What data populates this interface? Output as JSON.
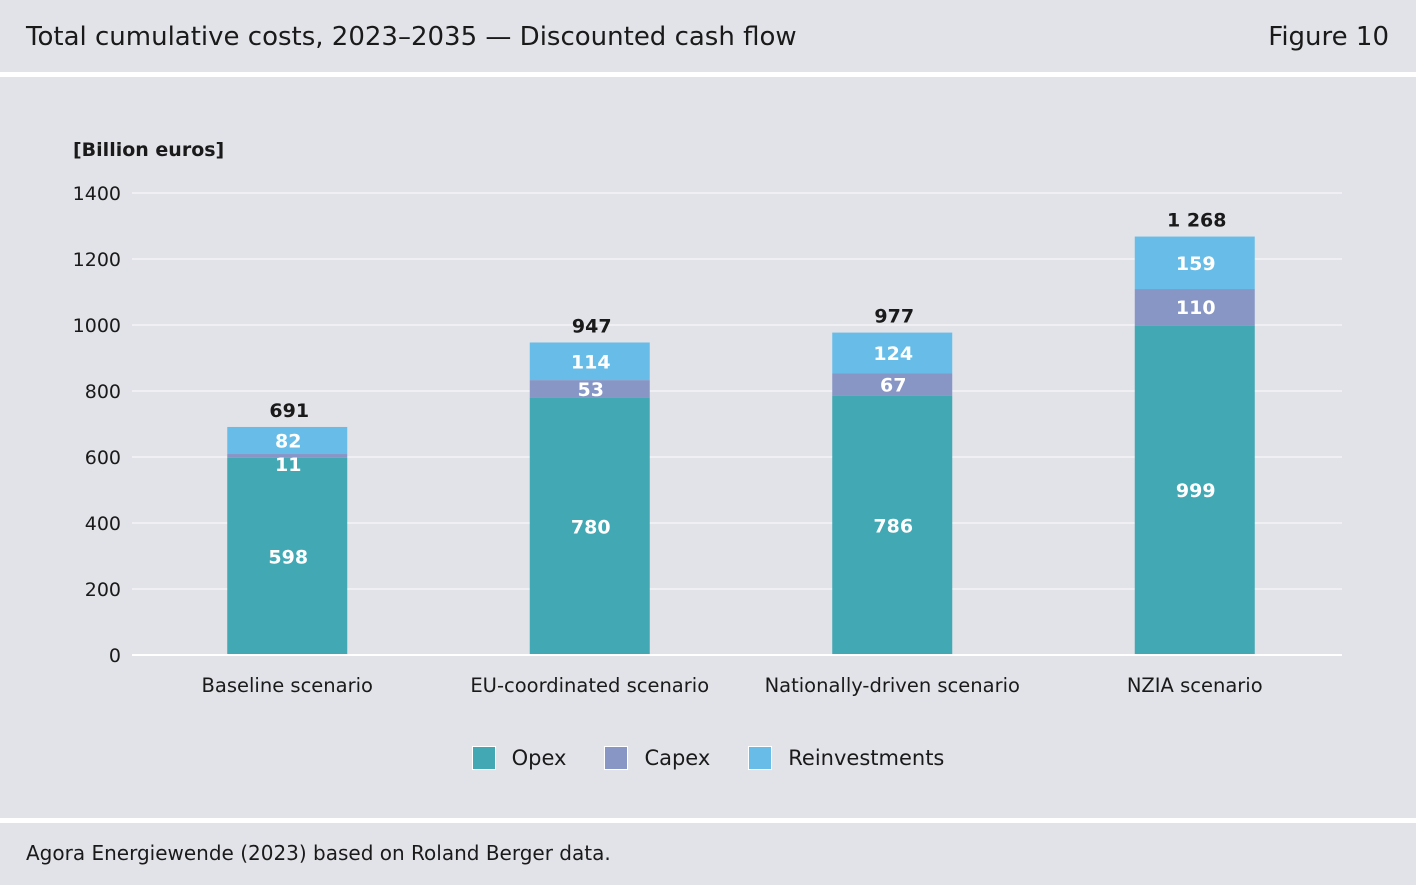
{
  "header": {
    "title": "Total cumulative costs, 2023–2035 — Discounted cash flow",
    "figure_label": "Figure 10"
  },
  "footer": {
    "source": "Agora Energiewende (2023) based on Roland Berger data."
  },
  "colors": {
    "opex": "#41a8b4",
    "capex": "#8896c6",
    "reinvestments": "#67bde7",
    "grid": "#f4f4f6",
    "axis": "#ffffff",
    "background": "#e2e3e8"
  },
  "chart_data": {
    "type": "bar",
    "stacked": true,
    "title": "",
    "ylabel": "[Billion euros]",
    "xlabel": "",
    "ylim": [
      0,
      1400
    ],
    "yticks": [
      "0",
      "200",
      "400",
      "600",
      "800",
      "1000",
      "1200",
      "1400"
    ],
    "categories": [
      "Baseline scenario",
      "EU-coordinated scenario",
      "Nationally-driven scenario",
      "NZIA scenario"
    ],
    "series": [
      {
        "name": "Opex",
        "values": [
          598,
          780,
          786,
          999
        ]
      },
      {
        "name": "Capex",
        "values": [
          11,
          53,
          67,
          110
        ]
      },
      {
        "name": "Reinvestments",
        "values": [
          82,
          114,
          124,
          159
        ]
      }
    ],
    "totals": [
      "691",
      "947",
      "977",
      "1 268"
    ],
    "grid": true,
    "legend": "bottom-center"
  }
}
